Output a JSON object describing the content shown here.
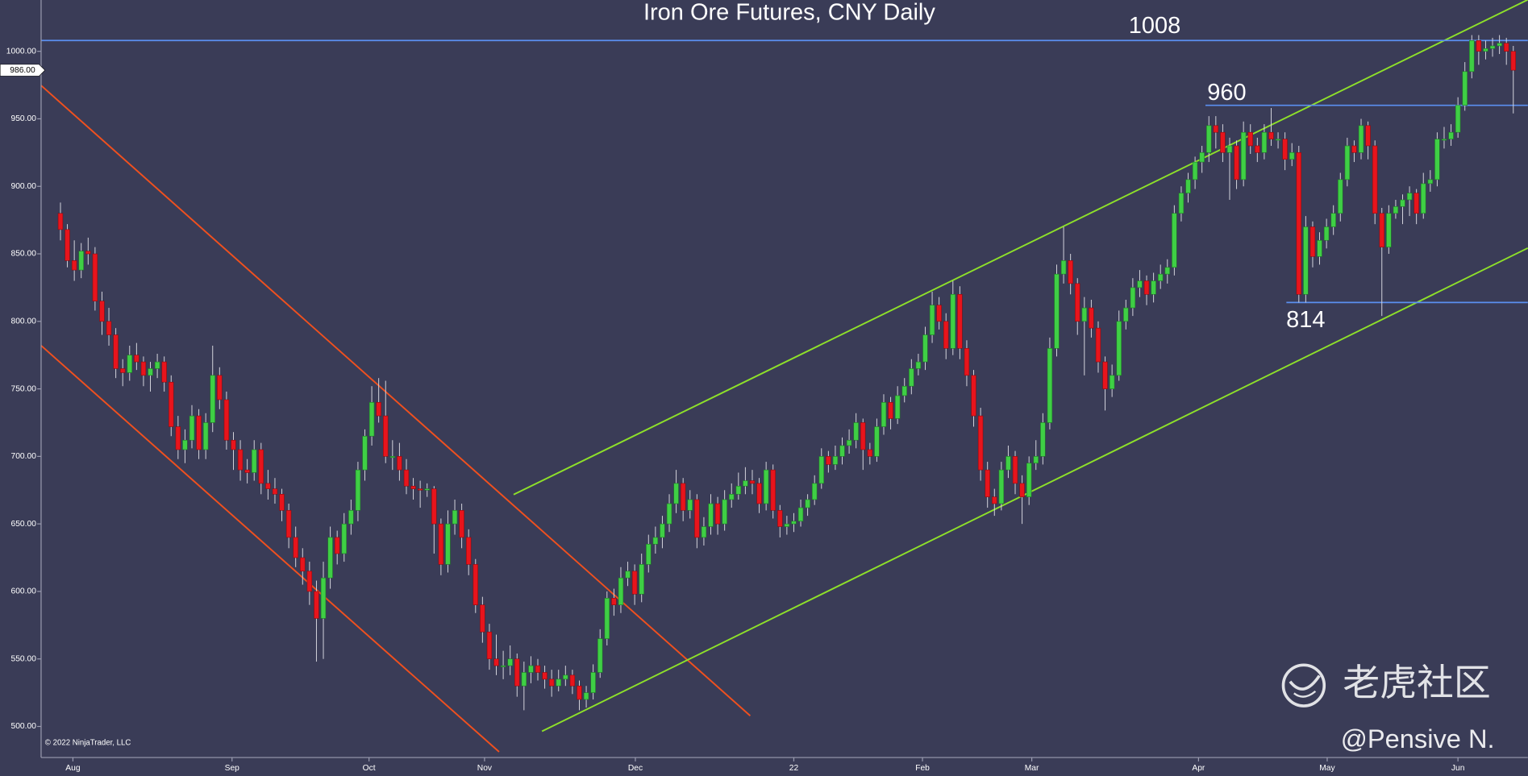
{
  "chart_data": {
    "type": "candlestick",
    "title": "Iron Ore Futures, CNY Daily",
    "copyright": "© 2022 NinjaTrader, LLC",
    "watermark": "老虎社区",
    "author": "@Pensive N.",
    "up_color": "#3fcf45",
    "down_color": "#e8141c",
    "background": "#3a3c57",
    "xlim": [
      -2.8,
      212.1
    ],
    "xticks": [
      {
        "value": 1.8,
        "label": "Aug"
      },
      {
        "value": 24.8,
        "label": "Sep"
      },
      {
        "value": 44.6,
        "label": "Oct"
      },
      {
        "value": 61.3,
        "label": "Nov"
      },
      {
        "value": 83.1,
        "label": "Dec"
      },
      {
        "value": 106,
        "label": "22"
      },
      {
        "value": 124.6,
        "label": "Feb"
      },
      {
        "value": 140.4,
        "label": "Mar"
      },
      {
        "value": 164.5,
        "label": "Apr"
      },
      {
        "value": 183.1,
        "label": "May"
      },
      {
        "value": 202,
        "label": "Jun"
      }
    ],
    "ylim": [
      477,
      1038
    ],
    "yticks": [
      {
        "value": 500,
        "label": "500.00"
      },
      {
        "value": 550,
        "label": "550.00"
      },
      {
        "value": 600,
        "label": "600.00"
      },
      {
        "value": 650,
        "label": "650.00"
      },
      {
        "value": 700,
        "label": "700.00"
      },
      {
        "value": 750,
        "label": "750.00"
      },
      {
        "value": 800,
        "label": "800.00"
      },
      {
        "value": 850,
        "label": "850.00"
      },
      {
        "value": 900,
        "label": "900.00"
      },
      {
        "value": 950,
        "label": "950.00"
      },
      {
        "value": 1000,
        "label": "1000.00"
      }
    ],
    "last_price": {
      "value": 986,
      "label": "986.00"
    },
    "levels": [
      {
        "value": 1008,
        "label": "1008",
        "color": "#5b8ff0"
      },
      {
        "value": 960,
        "label": "960",
        "from": 165.5,
        "color": "#5b8ff0"
      },
      {
        "value": 814,
        "label": "814",
        "from": 177.2,
        "color": "#5b8ff0"
      }
    ],
    "trendlines": [
      {
        "color": "#f0501e",
        "points": [
          [
            -2.8,
            974.7
          ],
          [
            99.7,
            507.9
          ]
        ]
      },
      {
        "color": "#f0501e",
        "points": [
          [
            -2.8,
            782.1
          ],
          [
            63.4,
            481.2
          ]
        ]
      },
      {
        "color": "#8ee02a",
        "points": [
          [
            65.5,
            671.7
          ],
          [
            212.1,
            1038.2
          ]
        ]
      },
      {
        "color": "#8ee02a",
        "points": [
          [
            69.6,
            496.4
          ],
          [
            212.1,
            854.3
          ]
        ]
      }
    ],
    "values": [
      [
        880,
        888,
        860,
        868
      ],
      [
        868,
        872,
        840,
        845
      ],
      [
        845,
        860,
        830,
        838
      ],
      [
        838,
        858,
        832,
        852
      ],
      [
        852,
        862,
        842,
        850
      ],
      [
        850,
        855,
        808,
        815
      ],
      [
        815,
        822,
        790,
        800
      ],
      [
        800,
        810,
        782,
        790
      ],
      [
        790,
        795,
        758,
        765
      ],
      [
        765,
        772,
        752,
        762
      ],
      [
        762,
        782,
        756,
        775
      ],
      [
        775,
        784,
        764,
        770
      ],
      [
        770,
        774,
        752,
        760
      ],
      [
        760,
        770,
        748,
        765
      ],
      [
        765,
        776,
        758,
        770
      ],
      [
        770,
        774,
        748,
        755
      ],
      [
        755,
        760,
        715,
        722
      ],
      [
        722,
        730,
        698,
        705
      ],
      [
        705,
        720,
        695,
        712
      ],
      [
        712,
        738,
        706,
        730
      ],
      [
        730,
        735,
        698,
        705
      ],
      [
        705,
        732,
        698,
        725
      ],
      [
        725,
        782,
        718,
        760
      ],
      [
        760,
        766,
        735,
        742
      ],
      [
        742,
        748,
        705,
        712
      ],
      [
        712,
        718,
        690,
        705
      ],
      [
        705,
        712,
        682,
        690
      ],
      [
        690,
        698,
        680,
        688
      ],
      [
        688,
        712,
        682,
        705
      ],
      [
        705,
        710,
        672,
        680
      ],
      [
        680,
        690,
        668,
        676
      ],
      [
        676,
        684,
        665,
        672
      ],
      [
        672,
        676,
        652,
        660
      ],
      [
        660,
        665,
        632,
        640
      ],
      [
        640,
        648,
        618,
        625
      ],
      [
        625,
        632,
        605,
        615
      ],
      [
        615,
        622,
        590,
        600
      ],
      [
        600,
        608,
        548,
        580
      ],
      [
        580,
        622,
        550,
        610
      ],
      [
        610,
        648,
        602,
        640
      ],
      [
        640,
        645,
        620,
        628
      ],
      [
        628,
        658,
        622,
        650
      ],
      [
        650,
        668,
        642,
        660
      ],
      [
        660,
        696,
        652,
        690
      ],
      [
        690,
        720,
        682,
        715
      ],
      [
        715,
        752,
        708,
        740
      ],
      [
        740,
        758,
        725,
        730
      ],
      [
        730,
        756,
        695,
        700
      ],
      [
        700,
        712,
        690,
        700
      ],
      [
        700,
        710,
        682,
        690
      ],
      [
        690,
        698,
        672,
        678
      ],
      [
        678,
        684,
        668,
        676
      ],
      [
        676,
        682,
        662,
        675
      ],
      [
        675,
        680,
        670,
        676
      ],
      [
        676,
        678,
        628,
        650
      ],
      [
        650,
        654,
        612,
        620
      ],
      [
        620,
        660,
        614,
        650
      ],
      [
        650,
        668,
        642,
        660
      ],
      [
        660,
        665,
        632,
        640
      ],
      [
        640,
        646,
        612,
        620
      ],
      [
        620,
        624,
        584,
        590
      ],
      [
        590,
        596,
        562,
        570
      ],
      [
        570,
        576,
        542,
        550
      ],
      [
        550,
        568,
        538,
        545
      ],
      [
        545,
        556,
        535,
        545
      ],
      [
        545,
        560,
        538,
        550
      ],
      [
        550,
        554,
        522,
        530
      ],
      [
        530,
        548,
        512,
        540
      ],
      [
        540,
        552,
        532,
        545
      ],
      [
        545,
        550,
        534,
        540
      ],
      [
        540,
        545,
        528,
        535
      ],
      [
        535,
        542,
        522,
        530
      ],
      [
        530,
        542,
        526,
        535
      ],
      [
        535,
        545,
        530,
        538
      ],
      [
        538,
        542,
        524,
        530
      ],
      [
        530,
        534,
        512,
        520
      ],
      [
        520,
        530,
        514,
        525
      ],
      [
        525,
        546,
        520,
        540
      ],
      [
        540,
        572,
        536,
        565
      ],
      [
        565,
        600,
        560,
        595
      ],
      [
        595,
        602,
        582,
        590
      ],
      [
        590,
        618,
        584,
        610
      ],
      [
        610,
        622,
        604,
        615
      ],
      [
        615,
        620,
        590,
        598
      ],
      [
        598,
        628,
        592,
        620
      ],
      [
        620,
        642,
        614,
        635
      ],
      [
        635,
        648,
        628,
        640
      ],
      [
        640,
        656,
        632,
        650
      ],
      [
        650,
        672,
        644,
        665
      ],
      [
        665,
        690,
        658,
        680
      ],
      [
        680,
        684,
        652,
        660
      ],
      [
        660,
        675,
        654,
        668
      ],
      [
        668,
        672,
        632,
        640
      ],
      [
        640,
        655,
        634,
        648
      ],
      [
        648,
        672,
        642,
        665
      ],
      [
        665,
        670,
        642,
        650
      ],
      [
        650,
        675,
        645,
        668
      ],
      [
        668,
        680,
        662,
        672
      ],
      [
        672,
        688,
        668,
        678
      ],
      [
        678,
        692,
        672,
        682
      ],
      [
        682,
        690,
        672,
        680
      ],
      [
        680,
        684,
        658,
        665
      ],
      [
        665,
        696,
        660,
        690
      ],
      [
        690,
        694,
        654,
        660
      ],
      [
        660,
        664,
        640,
        648
      ],
      [
        648,
        656,
        642,
        650
      ],
      [
        650,
        658,
        644,
        652
      ],
      [
        652,
        668,
        648,
        662
      ],
      [
        662,
        672,
        656,
        668
      ],
      [
        668,
        686,
        664,
        680
      ],
      [
        680,
        706,
        676,
        700
      ],
      [
        700,
        704,
        688,
        694
      ],
      [
        694,
        708,
        690,
        700
      ],
      [
        700,
        714,
        694,
        708
      ],
      [
        708,
        720,
        702,
        712
      ],
      [
        712,
        732,
        706,
        725
      ],
      [
        725,
        728,
        690,
        705
      ],
      [
        705,
        710,
        694,
        700
      ],
      [
        700,
        728,
        696,
        722
      ],
      [
        722,
        746,
        716,
        740
      ],
      [
        740,
        744,
        720,
        728
      ],
      [
        728,
        752,
        724,
        745
      ],
      [
        745,
        758,
        740,
        752
      ],
      [
        752,
        772,
        746,
        765
      ],
      [
        765,
        776,
        760,
        770
      ],
      [
        770,
        796,
        764,
        790
      ],
      [
        790,
        822,
        784,
        812
      ],
      [
        812,
        818,
        794,
        800
      ],
      [
        800,
        806,
        772,
        780
      ],
      [
        780,
        830,
        775,
        820
      ],
      [
        820,
        826,
        772,
        780
      ],
      [
        780,
        786,
        752,
        760
      ],
      [
        760,
        764,
        722,
        730
      ],
      [
        730,
        736,
        682,
        690
      ],
      [
        690,
        696,
        662,
        670
      ],
      [
        670,
        676,
        656,
        665
      ],
      [
        665,
        696,
        660,
        690
      ],
      [
        690,
        708,
        684,
        700
      ],
      [
        700,
        704,
        672,
        680
      ],
      [
        680,
        686,
        650,
        670
      ],
      [
        670,
        700,
        664,
        695
      ],
      [
        695,
        712,
        690,
        700
      ],
      [
        700,
        732,
        694,
        725
      ],
      [
        725,
        788,
        720,
        780
      ],
      [
        780,
        842,
        774,
        835
      ],
      [
        835,
        870,
        828,
        845
      ],
      [
        845,
        850,
        820,
        828
      ],
      [
        828,
        832,
        790,
        800
      ],
      [
        800,
        818,
        760,
        810
      ],
      [
        810,
        816,
        788,
        795
      ],
      [
        795,
        800,
        762,
        770
      ],
      [
        770,
        774,
        734,
        750
      ],
      [
        750,
        768,
        744,
        760
      ],
      [
        760,
        808,
        756,
        800
      ],
      [
        800,
        816,
        794,
        810
      ],
      [
        810,
        832,
        804,
        825
      ],
      [
        825,
        838,
        818,
        830
      ],
      [
        830,
        834,
        812,
        820
      ],
      [
        820,
        836,
        814,
        830
      ],
      [
        830,
        842,
        824,
        835
      ],
      [
        835,
        846,
        828,
        840
      ],
      [
        840,
        886,
        834,
        880
      ],
      [
        880,
        900,
        874,
        895
      ],
      [
        895,
        910,
        888,
        905
      ],
      [
        905,
        922,
        898,
        918
      ],
      [
        918,
        930,
        910,
        925
      ],
      [
        925,
        952,
        918,
        945
      ],
      [
        945,
        952,
        928,
        940
      ],
      [
        940,
        946,
        918,
        925
      ],
      [
        925,
        936,
        890,
        930
      ],
      [
        930,
        934,
        898,
        905
      ],
      [
        905,
        948,
        900,
        940
      ],
      [
        940,
        946,
        924,
        930
      ],
      [
        930,
        936,
        918,
        925
      ],
      [
        925,
        946,
        920,
        940
      ],
      [
        940,
        958,
        930,
        935
      ],
      [
        935,
        940,
        928,
        935
      ],
      [
        935,
        940,
        912,
        920
      ],
      [
        920,
        932,
        915,
        925
      ],
      [
        925,
        930,
        814,
        820
      ],
      [
        820,
        878,
        814,
        870
      ],
      [
        870,
        874,
        840,
        848
      ],
      [
        848,
        866,
        842,
        860
      ],
      [
        860,
        876,
        854,
        870
      ],
      [
        870,
        886,
        864,
        880
      ],
      [
        880,
        910,
        874,
        905
      ],
      [
        905,
        936,
        900,
        930
      ],
      [
        930,
        934,
        918,
        925
      ],
      [
        925,
        950,
        920,
        945
      ],
      [
        945,
        948,
        920,
        930
      ],
      [
        930,
        934,
        872,
        880
      ],
      [
        880,
        884,
        804,
        855
      ],
      [
        855,
        886,
        850,
        880
      ],
      [
        880,
        890,
        876,
        885
      ],
      [
        885,
        894,
        872,
        890
      ],
      [
        890,
        900,
        878,
        895
      ],
      [
        895,
        898,
        872,
        880
      ],
      [
        880,
        910,
        876,
        902
      ],
      [
        902,
        912,
        896,
        905
      ],
      [
        905,
        940,
        900,
        935
      ],
      [
        935,
        944,
        928,
        935
      ],
      [
        935,
        946,
        930,
        940
      ],
      [
        940,
        966,
        936,
        960
      ],
      [
        960,
        992,
        956,
        985
      ],
      [
        985,
        1012,
        980,
        1008
      ],
      [
        1008,
        1012,
        990,
        1000
      ],
      [
        1000,
        1008,
        994,
        1002
      ],
      [
        1002,
        1010,
        996,
        1004
      ],
      [
        1004,
        1012,
        998,
        1006
      ],
      [
        1006,
        1010,
        990,
        1000
      ],
      [
        1000,
        1004,
        954,
        986
      ]
    ]
  }
}
